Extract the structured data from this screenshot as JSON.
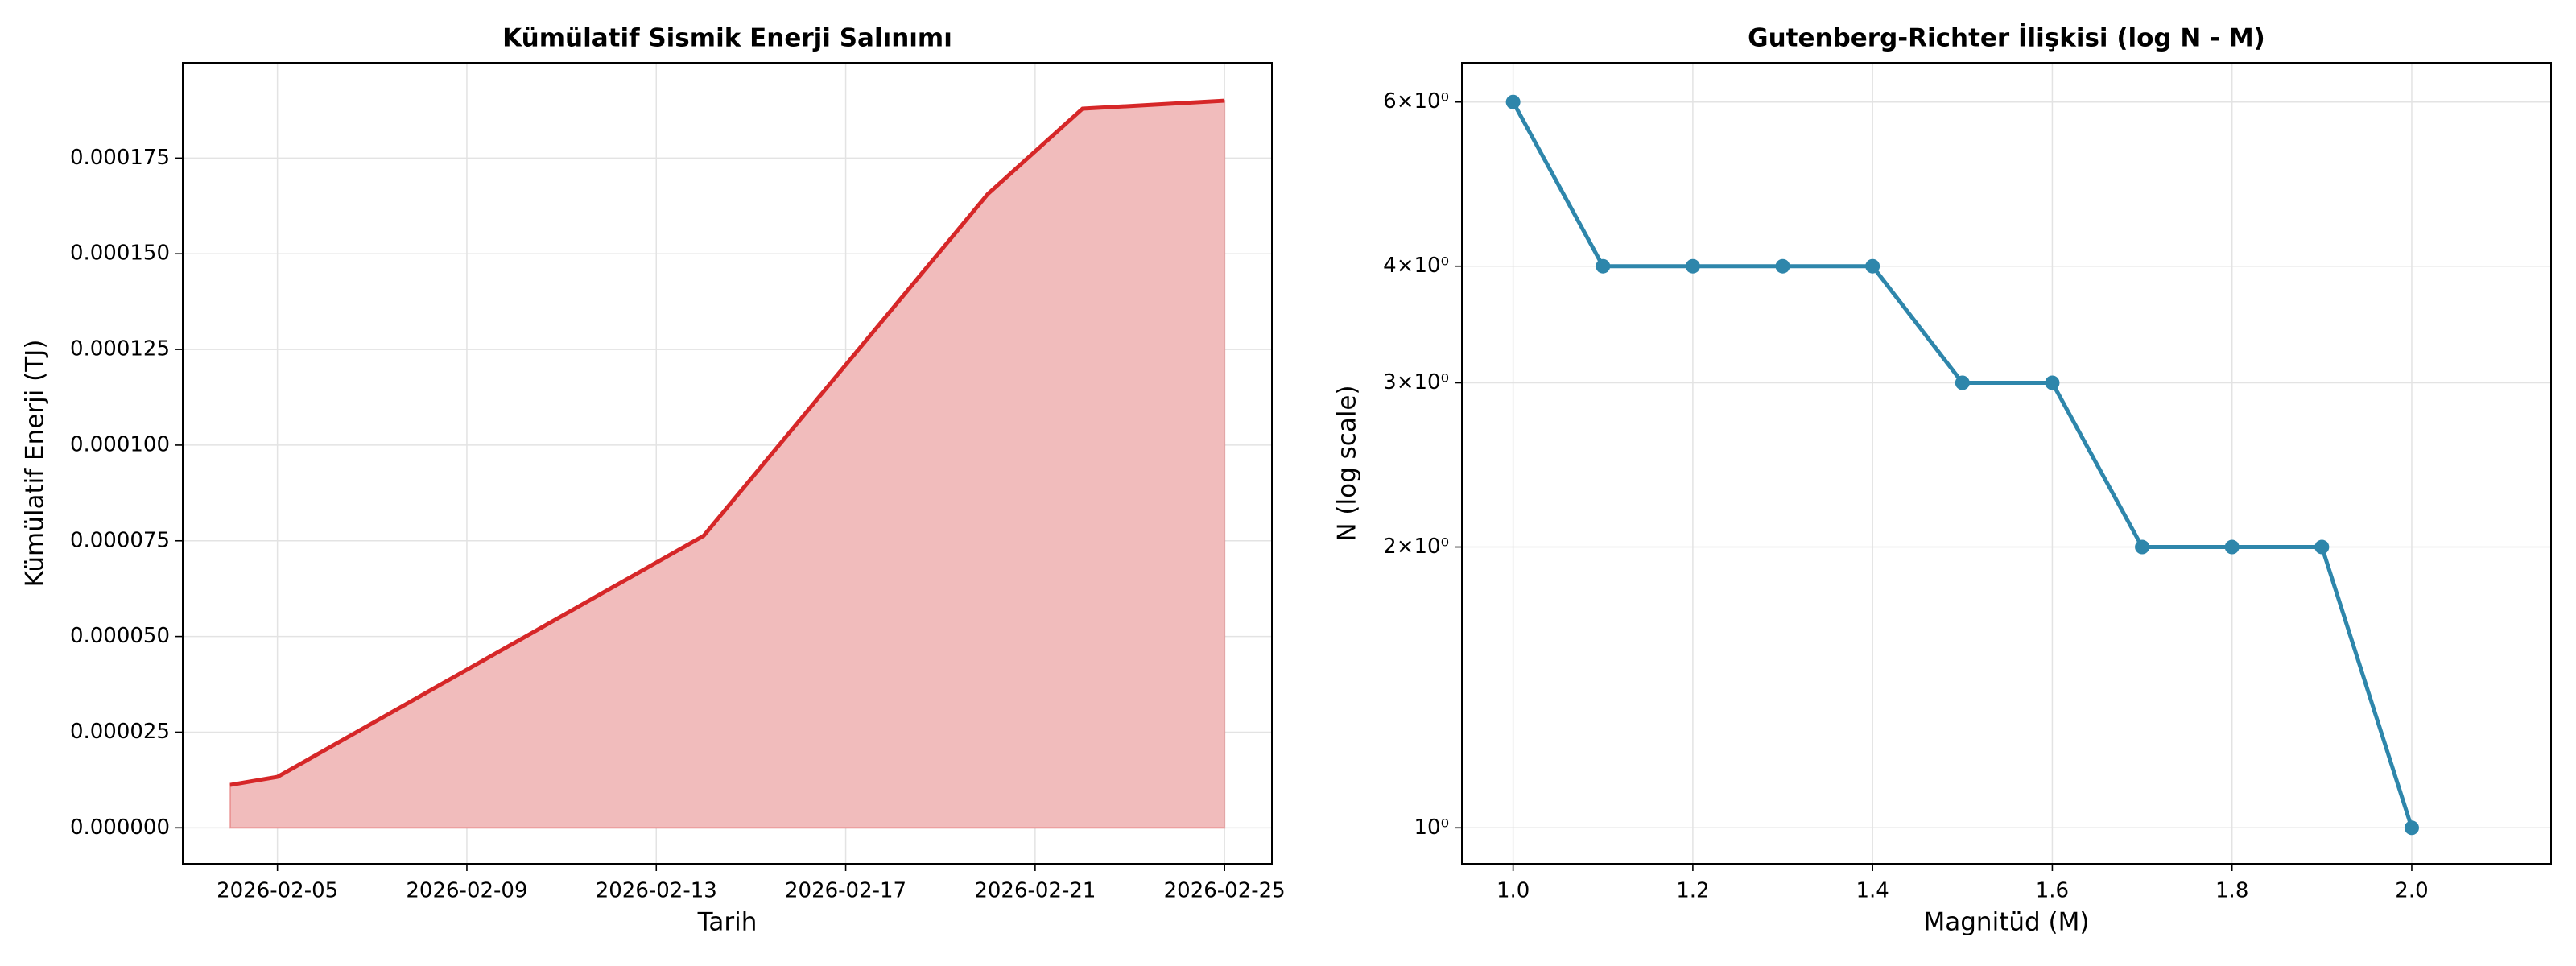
{
  "chart_data": [
    {
      "type": "area",
      "title": "Kümülatif Sismik Enerji Salınımı",
      "xlabel": "Tarih",
      "ylabel": "Kümülatif Enerji (TJ)",
      "x": [
        "2026-02-04",
        "2026-02-05",
        "2026-02-14",
        "2026-02-20",
        "2026-02-22",
        "2026-02-25"
      ],
      "values": [
        1.12e-05,
        1.33e-05,
        7.63e-05,
        0.0001656,
        0.0001879,
        0.00019
      ],
      "color": "#d62728",
      "fill_color": "#f1bcbc",
      "xlim": [
        "2026-02-03",
        "2026-02-26"
      ],
      "xticks": [
        "2026-02-05",
        "2026-02-09",
        "2026-02-13",
        "2026-02-17",
        "2026-02-21",
        "2026-02-25"
      ],
      "ylim": [
        -9.4e-06,
        0.0001999
      ],
      "yticks": [
        {
          "value": 0,
          "label": "0.000000"
        },
        {
          "value": 2.5e-05,
          "label": "0.000025"
        },
        {
          "value": 5e-05,
          "label": "0.000050"
        },
        {
          "value": 7.5e-05,
          "label": "0.000075"
        },
        {
          "value": 0.0001,
          "label": "0.000100"
        },
        {
          "value": 0.000125,
          "label": "0.000125"
        },
        {
          "value": 0.00015,
          "label": "0.000150"
        },
        {
          "value": 0.000175,
          "label": "0.000175"
        }
      ],
      "grid": true
    },
    {
      "type": "line",
      "title": "Gutenberg-Richter İlişkisi (log N - M)",
      "xlabel": "Magnitüd (M)",
      "ylabel": "N (log scale)",
      "x": [
        1.0,
        1.1,
        1.2,
        1.3,
        1.4,
        1.5,
        1.6,
        1.7,
        1.8,
        1.9,
        2.0
      ],
      "values": [
        6,
        4,
        4,
        4,
        4,
        3,
        3,
        2,
        2,
        2,
        1
      ],
      "color": "#2e86ab",
      "log_scale": "y",
      "xlim": [
        0.943,
        2.155
      ],
      "xticks": [
        {
          "value": 1.0,
          "label": "1.0"
        },
        {
          "value": 1.2,
          "label": "1.2"
        },
        {
          "value": 1.4,
          "label": "1.4"
        },
        {
          "value": 1.6,
          "label": "1.6"
        },
        {
          "value": 1.8,
          "label": "1.8"
        },
        {
          "value": 2.0,
          "label": "2.0"
        }
      ],
      "ylim": [
        0.915,
        6.61
      ],
      "yticks": [
        {
          "value": 1,
          "label": "10⁰"
        },
        {
          "value": 2,
          "label": "2×10⁰"
        },
        {
          "value": 3,
          "label": "3×10⁰"
        },
        {
          "value": 4,
          "label": "4×10⁰"
        },
        {
          "value": 6,
          "label": "6×10⁰"
        }
      ],
      "grid": true
    }
  ]
}
